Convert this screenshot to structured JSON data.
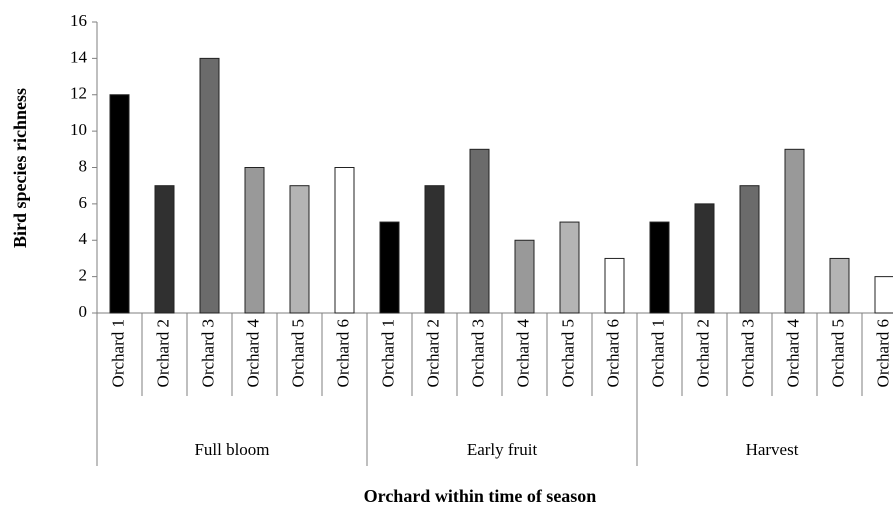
{
  "chart_data": {
    "type": "bar",
    "x_label": "Orchard within time of season",
    "y_label": "Bird species richness",
    "categories": [
      "Full bloom",
      "Early fruit",
      "Harvest"
    ],
    "series": [
      {
        "name": "Orchard 1",
        "color": "#000000",
        "values": [
          12,
          5,
          5
        ]
      },
      {
        "name": "Orchard 2",
        "color": "#303030",
        "values": [
          7,
          7,
          6
        ]
      },
      {
        "name": "Orchard 3",
        "color": "#6b6b6b",
        "values": [
          14,
          9,
          7
        ]
      },
      {
        "name": "Orchard 4",
        "color": "#999999",
        "values": [
          8,
          4,
          9
        ]
      },
      {
        "name": "Orchard 5",
        "color": "#b4b4b4",
        "values": [
          7,
          5,
          3
        ]
      },
      {
        "name": "Orchard 6",
        "color": "#ffffff",
        "values": [
          8,
          3,
          2
        ]
      }
    ],
    "ylim": [
      0,
      16
    ],
    "yticks": [
      0,
      2,
      4,
      6,
      8,
      10,
      12,
      14,
      16
    ],
    "grid": false
  }
}
